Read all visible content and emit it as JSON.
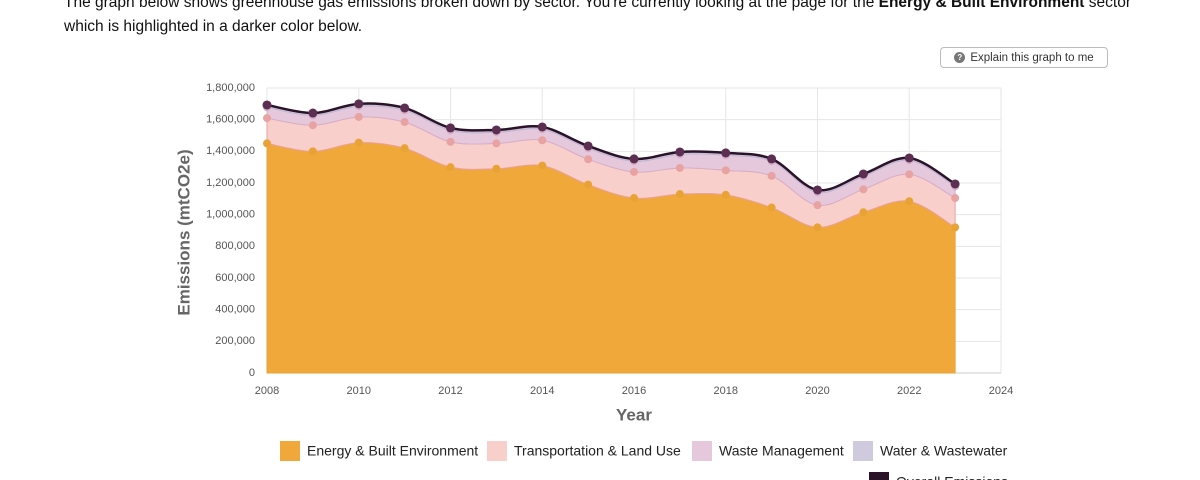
{
  "intro": {
    "before": "The graph below shows greenhouse gas emissions broken down by sector. You're currently looking at the page for the ",
    "bold": "Energy & Built Environment",
    "after": " sector which is highlighted in a darker color below."
  },
  "button": "Explain this graph to me",
  "chart_data": {
    "type": "stacked_area",
    "x": [
      2008,
      2009,
      2010,
      2011,
      2012,
      2013,
      2014,
      2015,
      2016,
      2017,
      2018,
      2019,
      2020,
      2021,
      2022,
      2023
    ],
    "series": [
      {
        "name": "Energy & Built Environment",
        "color": "#f0a83a",
        "point_color": "#e9a335",
        "values": [
          1450000,
          1400000,
          1455000,
          1420000,
          1300000,
          1290000,
          1310000,
          1190000,
          1105000,
          1130000,
          1125000,
          1045000,
          920000,
          1015000,
          1085000,
          920000
        ]
      },
      {
        "name": "Transportation & Land Use",
        "color": "#f8cfcb",
        "point_color": "#e8a2a2",
        "values": [
          160000,
          165000,
          162000,
          165000,
          160000,
          160000,
          160000,
          160000,
          165000,
          165000,
          155000,
          200000,
          140000,
          145000,
          170000,
          185000
        ]
      },
      {
        "name": "Waste Management",
        "color": "#e5c8db",
        "point_color": "#d6afc9",
        "values": [
          68000,
          62000,
          68000,
          74000,
          73000,
          70000,
          69000,
          69000,
          67000,
          86000,
          95000,
          92000,
          81000,
          82000,
          88000,
          74000
        ]
      },
      {
        "name": "Water & Wastewater",
        "color": "#cfcade",
        "point_color": "#bdb6d2",
        "values": [
          15000,
          15000,
          15000,
          15000,
          15000,
          15000,
          15000,
          15000,
          15000,
          15000,
          15000,
          15000,
          15000,
          15000,
          15000,
          15000
        ]
      }
    ],
    "overall": {
      "name": "Overall Emissions",
      "color": "#2b1228",
      "point_color": "#5c2f52",
      "values": [
        1693000,
        1642000,
        1700000,
        1674000,
        1548000,
        1535000,
        1554000,
        1434000,
        1352000,
        1396000,
        1390000,
        1352000,
        1156000,
        1257000,
        1358000,
        1194000
      ]
    },
    "xlim": [
      2008,
      2024
    ],
    "xticks": [
      2008,
      2010,
      2012,
      2014,
      2016,
      2018,
      2020,
      2022,
      2024
    ],
    "ylim": [
      0,
      1800000
    ],
    "yticks": [
      0,
      {
        "value": 200000,
        "label": "200,000"
      },
      {
        "value": 400000,
        "label": "400,000"
      },
      {
        "value": 600000,
        "label": "600,000"
      },
      {
        "value": 800000,
        "label": "800,000"
      },
      {
        "value": 1000000,
        "label": "1,000,000"
      },
      {
        "value": 1200000,
        "label": "1,200,000"
      },
      {
        "value": 1400000,
        "label": "1,400,000"
      },
      {
        "value": 1600000,
        "label": "1,600,000"
      },
      {
        "value": 1800000,
        "label": "1,800,000"
      }
    ],
    "xlabel": "Year",
    "ylabel": "Emissions (mtCO2e)",
    "grid": true,
    "smooth": true
  }
}
